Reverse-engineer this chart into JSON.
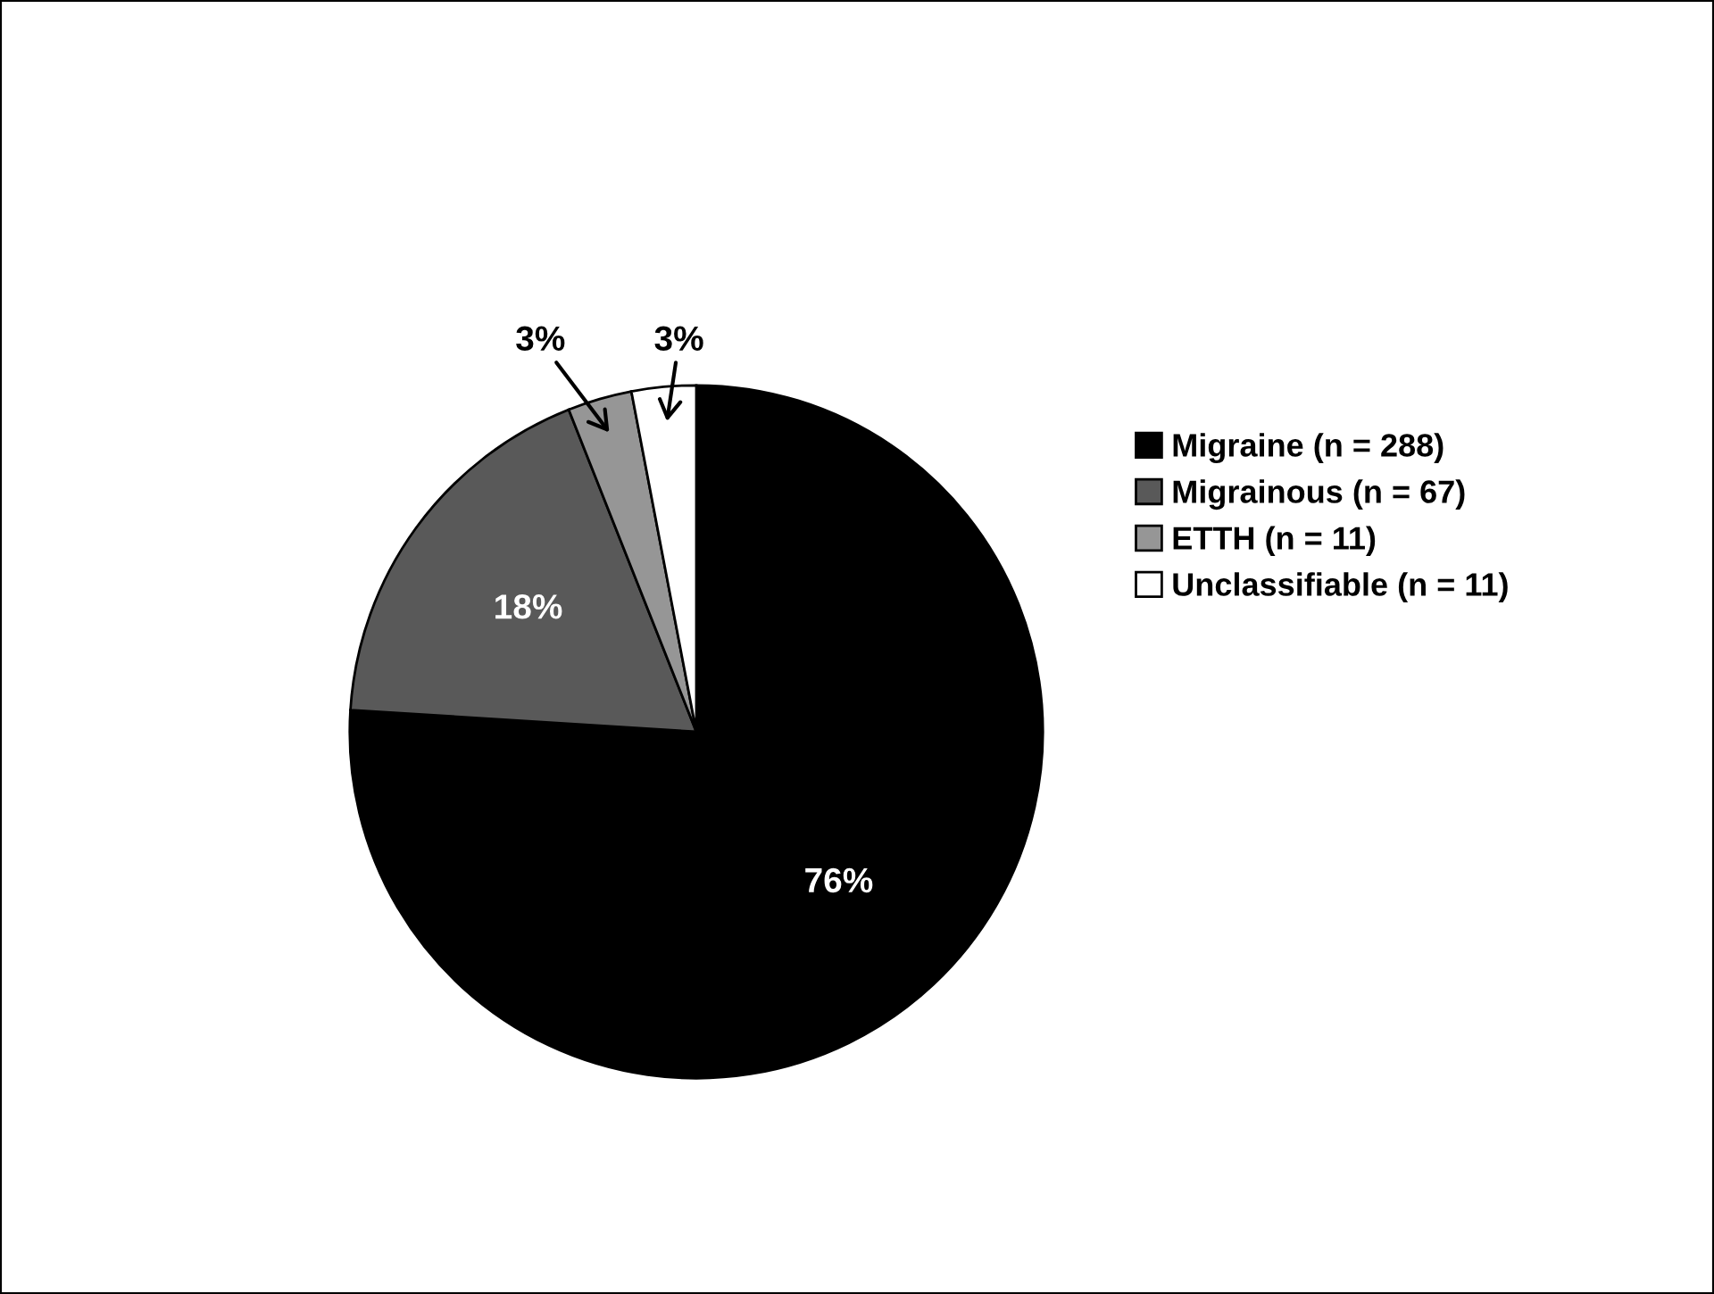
{
  "chart_data": {
    "type": "pie",
    "categories": [
      "Migraine (n = 288)",
      "Migrainous (n = 67)",
      "ETTH (n = 11)",
      "Unclassifiable (n = 11)"
    ],
    "values": [
      76,
      18,
      3,
      3
    ],
    "colors": [
      "#000000",
      "#595959",
      "#969696",
      "#ffffff"
    ],
    "value_labels": [
      "76%",
      "18%",
      "3%",
      "3%"
    ],
    "legend": "right"
  }
}
